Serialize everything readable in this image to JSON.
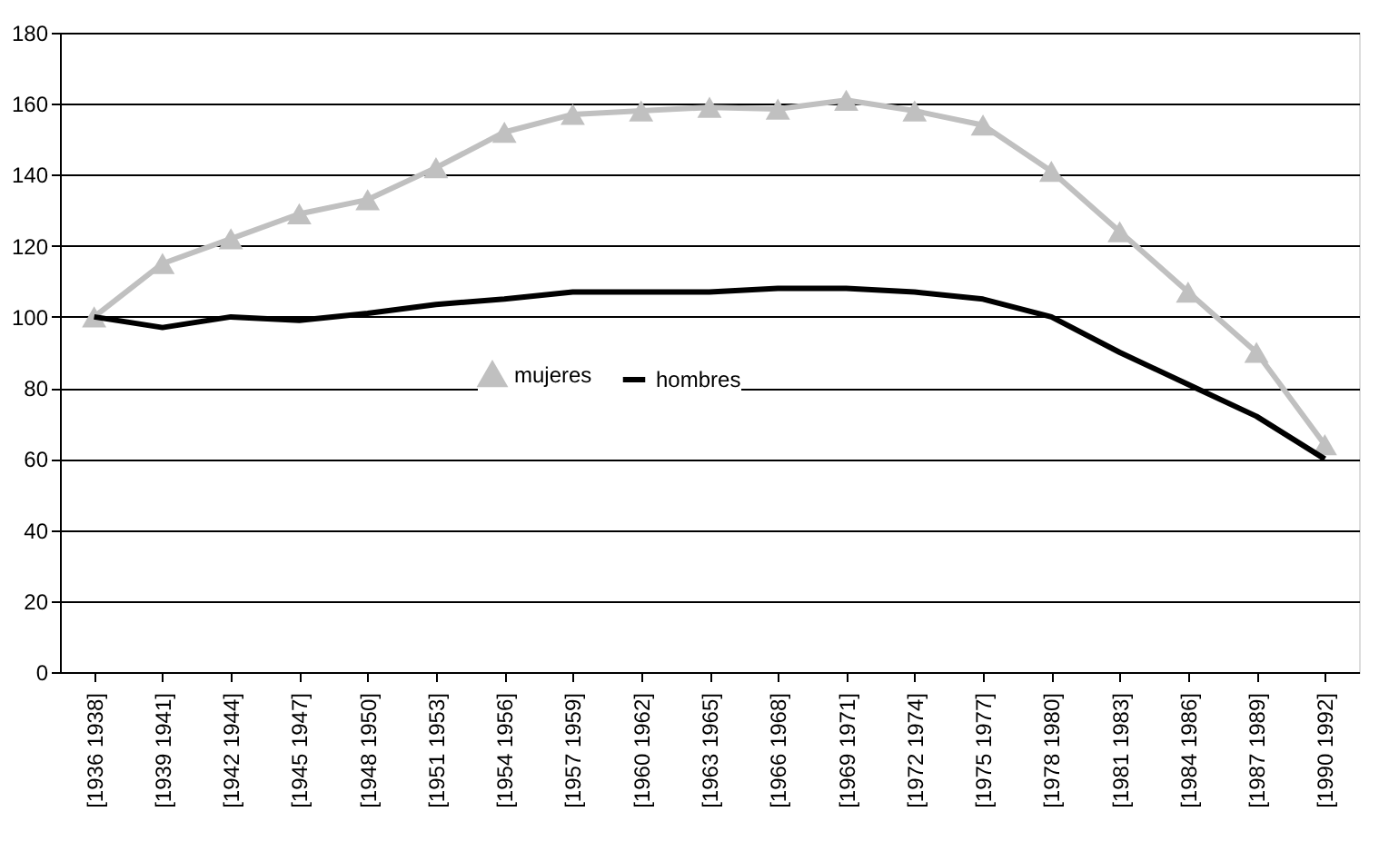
{
  "chart_data": {
    "type": "line",
    "categories": [
      "[1936 1938]",
      "[1939 1941]",
      "[1942 1944]",
      "[1945 1947]",
      "[1948 1950]",
      "[1951 1953]",
      "[1954 1956]",
      "[1957 1959]",
      "[1960 1962]",
      "[1963 1965]",
      "[1966 1968]",
      "[1969 1971]",
      "[1972 1974]",
      "[1975 1977]",
      "[1978 1980]",
      "[1981 1983]",
      "[1984 1986]",
      "[1987 1989]",
      "[1990 1992]"
    ],
    "series": [
      {
        "name": "mujeres",
        "color": "#c0c0c0",
        "marker": "triangle",
        "values": [
          100,
          115,
          122,
          129,
          133,
          142,
          152,
          157,
          158,
          159,
          158.5,
          161,
          158,
          154,
          141,
          124,
          107,
          90,
          64
        ]
      },
      {
        "name": "hombres",
        "color": "#000000",
        "marker": "none",
        "values": [
          100,
          97,
          100,
          99,
          101,
          103.5,
          105,
          107,
          107,
          107,
          108,
          108,
          107,
          105,
          100,
          90,
          81,
          72,
          60
        ]
      }
    ],
    "ylim": [
      0,
      180
    ],
    "yticks": [
      0,
      20,
      40,
      60,
      80,
      100,
      120,
      140,
      160,
      180
    ],
    "grid": "y",
    "legend": "center"
  }
}
